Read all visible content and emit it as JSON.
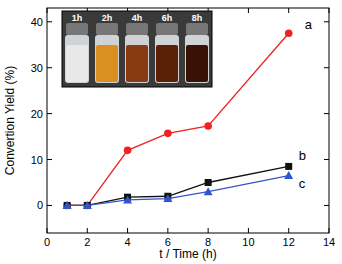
{
  "chart_data": {
    "type": "line",
    "x_label": "t / Time (h)",
    "y_label": "Convertion Yield (%)",
    "x": [
      1,
      2,
      4,
      6,
      8,
      12
    ],
    "series": [
      {
        "name": "a",
        "color": "#ee2222",
        "marker": "circle",
        "values": [
          0,
          0,
          12,
          15.7,
          17.3,
          37.5
        ]
      },
      {
        "name": "b",
        "color": "#111111",
        "marker": "square",
        "values": [
          0,
          0,
          1.8,
          2,
          5,
          8.5
        ]
      },
      {
        "name": "c",
        "color": "#3355cc",
        "marker": "triangle",
        "values": [
          0,
          0,
          1.2,
          1.5,
          3,
          6.5
        ]
      }
    ],
    "xlim": [
      0,
      14
    ],
    "xticks": [
      0,
      2,
      4,
      6,
      8,
      10,
      12,
      14
    ],
    "ylim": [
      -6,
      43
    ],
    "yticks": [
      0,
      10,
      20,
      30,
      40
    ],
    "annotations": [
      "1h",
      "2h",
      "4h",
      "6h",
      "8h"
    ],
    "grid": false
  }
}
